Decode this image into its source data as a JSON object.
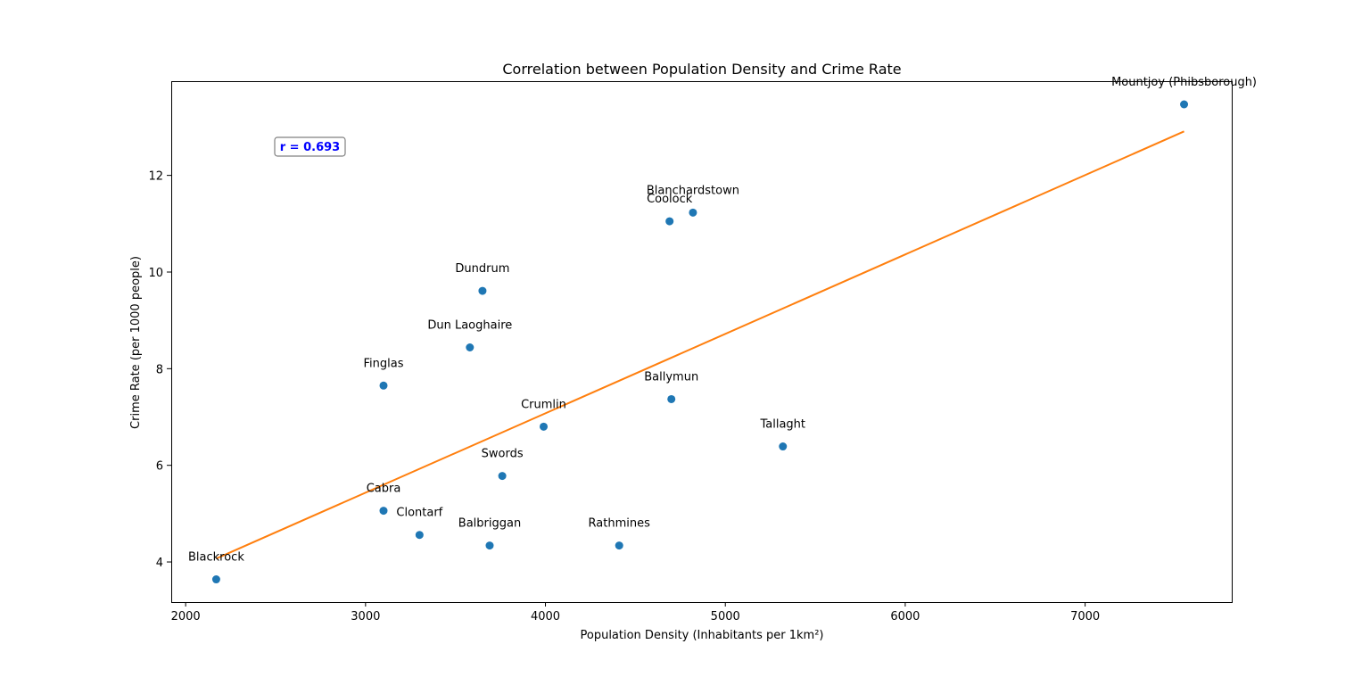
{
  "chart_data": {
    "type": "scatter",
    "title": "Correlation between Population Density and Crime Rate",
    "xlabel": "Population Density (Inhabitants per 1km²)",
    "ylabel": "Crime Rate (per 1000 people)",
    "xlim": [
      1920,
      7820
    ],
    "ylim": [
      3.17,
      13.95
    ],
    "xticks": [
      2000,
      3000,
      4000,
      5000,
      6000,
      7000
    ],
    "yticks": [
      4,
      6,
      8,
      10,
      12
    ],
    "grid": false,
    "annotation": "r = 0.693",
    "colors": {
      "points": "#1f77b4",
      "trend": "#ff7f0e",
      "annotation": "#0000ff"
    },
    "points": [
      {
        "label": "Mountjoy (Phibsborough)",
        "x": 7550,
        "y": 13.47
      },
      {
        "label": "Blanchardstown",
        "x": 4820,
        "y": 11.23
      },
      {
        "label": "Coolock",
        "x": 4690,
        "y": 11.05
      },
      {
        "label": "Dundrum",
        "x": 3650,
        "y": 9.61
      },
      {
        "label": "Dun Laoghaire",
        "x": 3580,
        "y": 8.44
      },
      {
        "label": "Finglas",
        "x": 3100,
        "y": 7.65
      },
      {
        "label": "Ballymun",
        "x": 4700,
        "y": 7.37
      },
      {
        "label": "Crumlin",
        "x": 3990,
        "y": 6.8
      },
      {
        "label": "Tallaght",
        "x": 5320,
        "y": 6.39
      },
      {
        "label": "Swords",
        "x": 3760,
        "y": 5.78
      },
      {
        "label": "Cabra",
        "x": 3100,
        "y": 5.06
      },
      {
        "label": "Clontarf",
        "x": 3300,
        "y": 4.56
      },
      {
        "label": "Balbriggan",
        "x": 3690,
        "y": 4.34
      },
      {
        "label": "Rathmines",
        "x": 4410,
        "y": 4.34
      },
      {
        "label": "Blackrock",
        "x": 2170,
        "y": 3.64
      }
    ],
    "trendline": {
      "x": [
        2170,
        7550
      ],
      "y": [
        4.07,
        12.91
      ]
    }
  }
}
